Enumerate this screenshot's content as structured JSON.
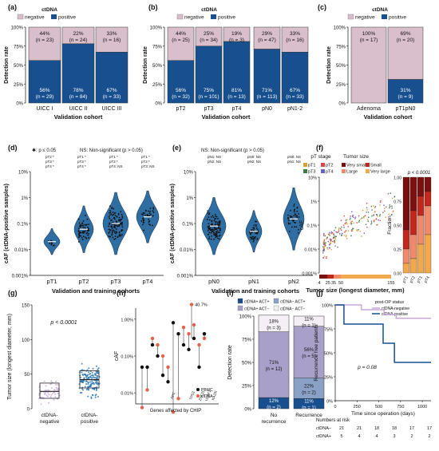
{
  "colors": {
    "negative": "#d9bfcc",
    "positive": "#174f8f",
    "violin": "#2f6ea3",
    "red": "#e0634a",
    "black": "#111111",
    "light": "#c9a8d6"
  },
  "chart_data": [
    {
      "id": "a",
      "type": "bar",
      "panel": "(a)",
      "legend_title": "ctDNA",
      "legend": [
        "negative",
        "positive"
      ],
      "categories": [
        "UICC I",
        "UICC II",
        "UICC III"
      ],
      "xlabel": "Validation cohort",
      "ylabel": "Detection rate",
      "ylim": [
        0,
        1
      ],
      "yticks": [
        "0%",
        "25%",
        "50%",
        "75%",
        "100%"
      ],
      "negative": [
        {
          "pct": "44%",
          "n": "(n = 23)"
        },
        {
          "pct": "22%",
          "n": "(n = 24)"
        },
        {
          "pct": "33%",
          "n": "(n = 16)"
        }
      ],
      "positive": [
        {
          "pct": "56%",
          "n": "(n = 29)",
          "v": 0.56
        },
        {
          "pct": "78%",
          "n": "(n = 84)",
          "v": 0.78
        },
        {
          "pct": "67%",
          "n": "(n = 33)",
          "v": 0.67
        }
      ]
    },
    {
      "id": "b",
      "type": "bar",
      "panel": "(b)",
      "legend_title": "ctDNA",
      "legend": [
        "negative",
        "positive"
      ],
      "groups": [
        {
          "categories": [
            "pT2",
            "pT3",
            "pT4"
          ],
          "negative": [
            {
              "pct": "44%",
              "n": "(n = 25)"
            },
            {
              "pct": "25%",
              "n": "(n = 34)"
            },
            {
              "pct": "19%",
              "n": "(n = 3)"
            }
          ],
          "positive": [
            {
              "pct": "56%",
              "n": "(n = 32)",
              "v": 0.56
            },
            {
              "pct": "75%",
              "n": "(n = 101)",
              "v": 0.75
            },
            {
              "pct": "81%",
              "n": "(n = 13)",
              "v": 0.81
            }
          ]
        },
        {
          "categories": [
            "pN0",
            "pN1-2"
          ],
          "negative": [
            {
              "pct": "29%",
              "n": "(n = 47)"
            },
            {
              "pct": "33%",
              "n": "(n = 16)"
            }
          ],
          "positive": [
            {
              "pct": "71%",
              "n": "(n = 113)",
              "v": 0.71
            },
            {
              "pct": "67%",
              "n": "(n = 33)",
              "v": 0.67
            }
          ]
        }
      ],
      "xlabel": "Validation cohort",
      "ylabel": "Detection rate",
      "ylim": [
        0,
        1
      ],
      "yticks": [
        "0%",
        "25%",
        "50%",
        "75%",
        "100%"
      ]
    },
    {
      "id": "c",
      "type": "bar",
      "panel": "(c)",
      "legend_title": "ctDNA",
      "legend": [
        "negative",
        "positive"
      ],
      "categories": [
        "Adenoma",
        "pT1pN0"
      ],
      "xlabel": "Validation cohort",
      "ylabel": "Detection rate",
      "ylim": [
        0,
        1
      ],
      "yticks": [
        "0%",
        "25%",
        "50%",
        "75%",
        "100%"
      ],
      "negative": [
        {
          "pct": "100%",
          "n": "(n = 17)"
        },
        {
          "pct": "69%",
          "n": "(n = 20)"
        }
      ],
      "positive": [
        {
          "pct": "",
          "n": "",
          "v": 0
        },
        {
          "pct": "31%",
          "n": "(n = 9)",
          "v": 0.31
        }
      ]
    },
    {
      "id": "d",
      "type": "violin",
      "panel": "(d)",
      "categories": [
        "pT1",
        "pT2",
        "pT3",
        "pT4"
      ],
      "xlabel": "Validation and training cohorts",
      "ylabel": "cAF (ctDNA-positive samples)",
      "yticks": [
        "0.001%",
        "0.01%",
        "0.1%",
        "1%",
        "10%"
      ],
      "ylog": true,
      "ylim": [
        0.001,
        10
      ],
      "sig_legend": "✱: p ≤ 0.05",
      "ns_legend": "NS: Non-significant (p > 0.05)",
      "annotations": [
        [
          "pT2 *",
          "pT3 *",
          "pT4 *"
        ],
        [
          "pT1 *",
          "pT3 *",
          "pT4 *"
        ],
        [
          "pT1 *",
          "pT2 *",
          "pT4: NS"
        ],
        [
          "pT1 *",
          "pT2 *",
          "pT3: NS"
        ]
      ],
      "medians": [
        0.02,
        0.06,
        0.1,
        0.18
      ]
    },
    {
      "id": "e",
      "type": "violin",
      "panel": "(e)",
      "categories": [
        "pN0",
        "pN1",
        "pN2"
      ],
      "xlabel": "Validation and training cohorts",
      "ylabel": "cAF (ctDNA-positive samples)",
      "yticks": [
        "0.001%",
        "0.01%",
        "0.1%",
        "1%",
        "10%"
      ],
      "ylog": true,
      "ylim": [
        0.001,
        10
      ],
      "ns_legend": "NS: Non-significant (p > 0.05)",
      "annotations": [
        [
          "pN1: NS",
          "pN2: NS"
        ],
        [
          "pN0: NS",
          "pN2: NS"
        ],
        [
          "pN0: NS",
          "pN1: NS"
        ]
      ],
      "medians": [
        0.08,
        0.05,
        0.15
      ]
    },
    {
      "id": "f",
      "type": "scatter",
      "panel": "(f)",
      "legend_pt_title": "pT stage",
      "legend_size_title": "Tumor size",
      "pt_stages": [
        "pT1",
        "pT2",
        "pT3",
        "pT4"
      ],
      "sizes": [
        "Very small",
        "Small",
        "Large",
        "Very large"
      ],
      "xlabel": "Tumor size (longest diameter, mm)",
      "ylabel": "cAF",
      "xticks": [
        "4",
        "25",
        "35",
        "50",
        "155"
      ],
      "yticks": [
        "0.001%",
        "0.01%",
        "0.1%",
        "1%",
        "10%"
      ],
      "p_text": "p < 0.0001",
      "frac_ylabel": "Fraction",
      "frac_yticks": [
        "0.00",
        "0.25",
        "0.50",
        "0.75",
        "1.00"
      ],
      "frac_categories": [
        "pT1",
        "pT2",
        "pT3",
        "pT4"
      ]
    },
    {
      "id": "g",
      "type": "box",
      "panel": "(g)",
      "categories": [
        "ctDNA-\nnegative",
        "ctDNA-\npositive"
      ],
      "ylabel": "Tumor size (longest diameter, mm)",
      "yticks": [
        "0",
        "50",
        "100",
        "150"
      ],
      "ylim": [
        0,
        150
      ],
      "p_text": "p < 0.0001",
      "medians": [
        25,
        42
      ],
      "q1": [
        15,
        30
      ],
      "q3": [
        37,
        55
      ]
    },
    {
      "id": "h",
      "type": "lollipop",
      "panel": "(h)",
      "ylabel": "cAF",
      "xlabel": "Genes affected by CHIP",
      "yticks": [
        "0.01%",
        "0.10%",
        "1.00%"
      ],
      "peak_label": "40.7%",
      "gene_labels": [
        "APC",
        "TP53",
        "ZNF2L",
        "U2AF1",
        "KAZN"
      ],
      "legend": [
        "PBMC",
        "cfDNA"
      ]
    },
    {
      "id": "i",
      "type": "bar",
      "panel": "(i)",
      "ylabel": "Detection rate",
      "categories": [
        "No\nrecurrence",
        "Recurrence"
      ],
      "legend": [
        "ctDNA+ ACT+",
        "ctDNA− ACT+",
        "ctDNA+ ACT−",
        "ctDNA− ACT−"
      ],
      "yticks": [
        "0%",
        "25%",
        "50%",
        "75%",
        "100%"
      ],
      "segments": [
        [
          {
            "pct": "12%",
            "n": "(n = 2)",
            "v": 0.12
          },
          {
            "pct": "",
            "n": "",
            "v": 0
          },
          {
            "pct": "71%",
            "n": "(n = 12)",
            "v": 0.71
          },
          {
            "pct": "18%",
            "n": "(n = 3)",
            "v": 0.18
          }
        ],
        [
          {
            "pct": "11%",
            "n": "(n = 1)",
            "v": 0.11
          },
          {
            "pct": "22%",
            "n": "(n = 2)",
            "v": 0.22
          },
          {
            "pct": "56%",
            "n": "(n = 5)",
            "v": 0.56
          },
          {
            "pct": "11%",
            "n": "(n = 1)",
            "v": 0.11
          }
        ]
      ]
    },
    {
      "id": "j",
      "type": "line",
      "panel": "(j)",
      "ylabel": "Recurrence free patients",
      "xlabel": "Time since operation (days)",
      "legend_title": "post-OP status",
      "legend": [
        "ctDNA-negative",
        "ctDNA-positive"
      ],
      "yticks": [
        "0%",
        "25%",
        "50%",
        "75%",
        "100%"
      ],
      "xticks": [
        "0",
        "250",
        "500",
        "750",
        "1000"
      ],
      "p_text": "p = 0.08",
      "risk_title": "Numbers at risk",
      "risk_rows": [
        {
          "label": "ctDNA−",
          "values": [
            "21",
            "21",
            "18",
            "18",
            "17",
            "17"
          ]
        },
        {
          "label": "ctDNA+",
          "values": [
            "5",
            "4",
            "4",
            "3",
            "2",
            "2"
          ]
        }
      ],
      "series": [
        {
          "name": "ctDNA-negative",
          "points": [
            [
              0,
              1
            ],
            [
              300,
              1
            ],
            [
              300,
              0.95
            ],
            [
              560,
              0.95
            ],
            [
              560,
              0.9
            ],
            [
              700,
              0.9
            ],
            [
              700,
              0.86
            ],
            [
              1100,
              0.86
            ]
          ]
        },
        {
          "name": "ctDNA-positive",
          "points": [
            [
              0,
              1
            ],
            [
              100,
              1
            ],
            [
              100,
              0.8
            ],
            [
              550,
              0.8
            ],
            [
              550,
              0.6
            ],
            [
              680,
              0.6
            ],
            [
              680,
              0.4
            ],
            [
              1100,
              0.4
            ]
          ]
        }
      ]
    }
  ]
}
